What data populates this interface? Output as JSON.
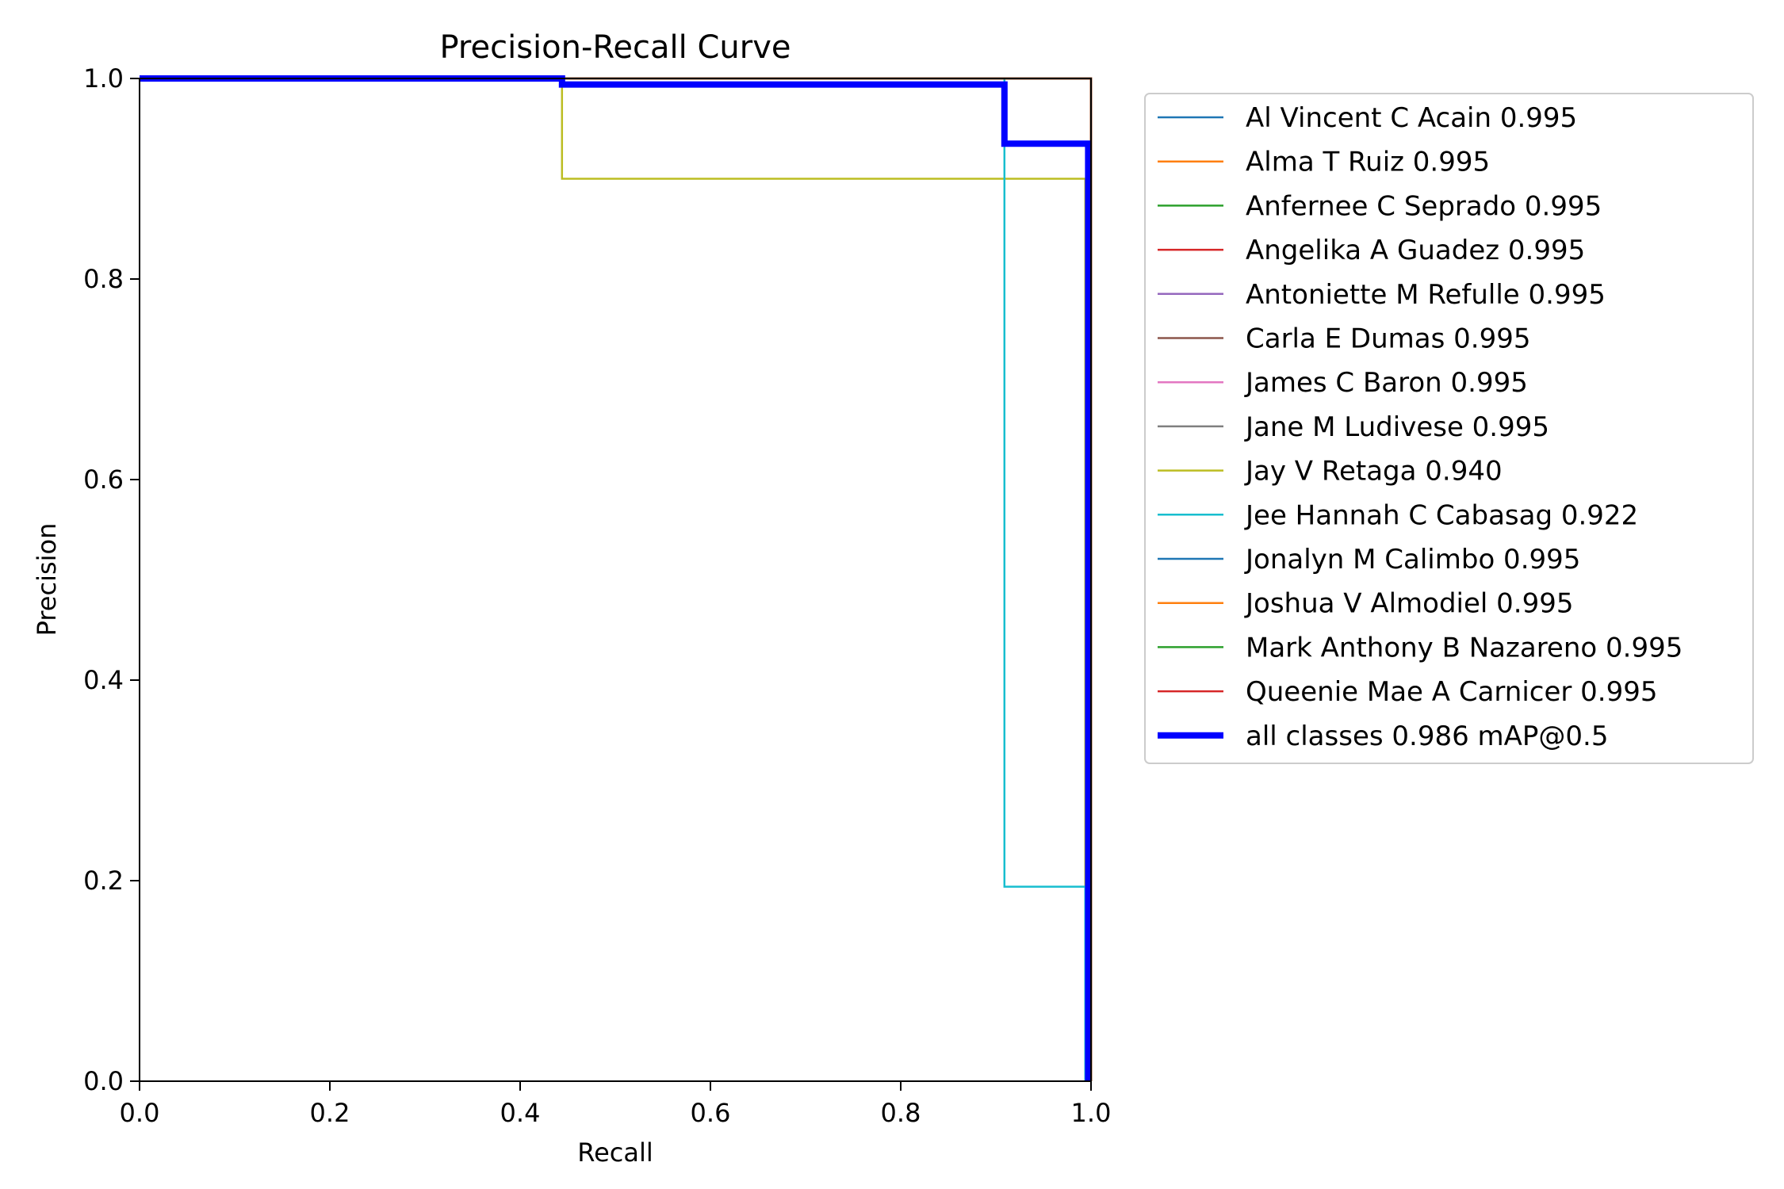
{
  "chart_data": {
    "type": "line",
    "title": "Precision-Recall Curve",
    "xlabel": "Recall",
    "ylabel": "Precision",
    "xlim": [
      0,
      1
    ],
    "ylim": [
      0,
      1
    ],
    "x_ticks": [
      "0.0",
      "0.2",
      "0.4",
      "0.6",
      "0.8",
      "1.0"
    ],
    "y_ticks": [
      "0.0",
      "0.2",
      "0.4",
      "0.6",
      "0.8",
      "1.0"
    ],
    "grid": false,
    "legend_position": "outside-right",
    "series": [
      {
        "name": "Al Vincent C Acain 0.995",
        "color": "#1f77b4",
        "x": [
          0,
          1,
          1
        ],
        "y": [
          1,
          1,
          0
        ]
      },
      {
        "name": "Alma T Ruiz 0.995",
        "color": "#ff7f0e",
        "x": [
          0,
          1,
          1
        ],
        "y": [
          1,
          1,
          0
        ]
      },
      {
        "name": "Anfernee C Seprado 0.995",
        "color": "#2ca02c",
        "x": [
          0,
          1,
          1
        ],
        "y": [
          1,
          1,
          0
        ]
      },
      {
        "name": "Angelika A Guadez 0.995",
        "color": "#d62728",
        "x": [
          0,
          1,
          1
        ],
        "y": [
          1,
          1,
          0
        ]
      },
      {
        "name": "Antoniette M Refulle 0.995",
        "color": "#9467bd",
        "x": [
          0,
          1,
          1
        ],
        "y": [
          1,
          1,
          0
        ]
      },
      {
        "name": "Carla E Dumas 0.995",
        "color": "#8c564b",
        "x": [
          0,
          1,
          1
        ],
        "y": [
          1,
          1,
          0
        ]
      },
      {
        "name": "James C Baron 0.995",
        "color": "#e377c2",
        "x": [
          0,
          1,
          1
        ],
        "y": [
          1,
          1,
          0
        ]
      },
      {
        "name": "Jane M Ludivese 0.995",
        "color": "#7f7f7f",
        "x": [
          0,
          1,
          1
        ],
        "y": [
          1,
          1,
          0
        ]
      },
      {
        "name": "Jay V Retaga 0.940",
        "color": "#bcbd22",
        "x": [
          0,
          0.444,
          0.444,
          0.994,
          0.994
        ],
        "y": [
          1,
          1,
          0.9,
          0.9,
          0
        ]
      },
      {
        "name": "Jee Hannah C Cabasag 0.922",
        "color": "#17becf",
        "x": [
          0,
          0.909,
          0.909,
          0.994,
          0.994
        ],
        "y": [
          1,
          1,
          0.194,
          0.194,
          0
        ]
      },
      {
        "name": "Jonalyn M Calimbo 0.995",
        "color": "#1f77b4",
        "x": [
          0,
          1,
          1
        ],
        "y": [
          1,
          1,
          0
        ]
      },
      {
        "name": "Joshua V Almodiel 0.995",
        "color": "#ff7f0e",
        "x": [
          0,
          1,
          1
        ],
        "y": [
          1,
          1,
          0
        ]
      },
      {
        "name": "Mark Anthony B Nazareno 0.995",
        "color": "#2ca02c",
        "x": [
          0,
          1,
          1
        ],
        "y": [
          1,
          1,
          0
        ]
      },
      {
        "name": "Queenie Mae A Carnicer 0.995",
        "color": "#d62728",
        "x": [
          0,
          1,
          1
        ],
        "y": [
          1,
          1,
          0
        ]
      },
      {
        "name": "all classes 0.986 mAP@0.5",
        "color": "#0000ff",
        "bold": true,
        "x": [
          0,
          0.444,
          0.444,
          0.909,
          0.909,
          0.997,
          0.997
        ],
        "y": [
          1,
          1,
          0.994,
          0.994,
          0.935,
          0.935,
          0
        ]
      }
    ]
  }
}
